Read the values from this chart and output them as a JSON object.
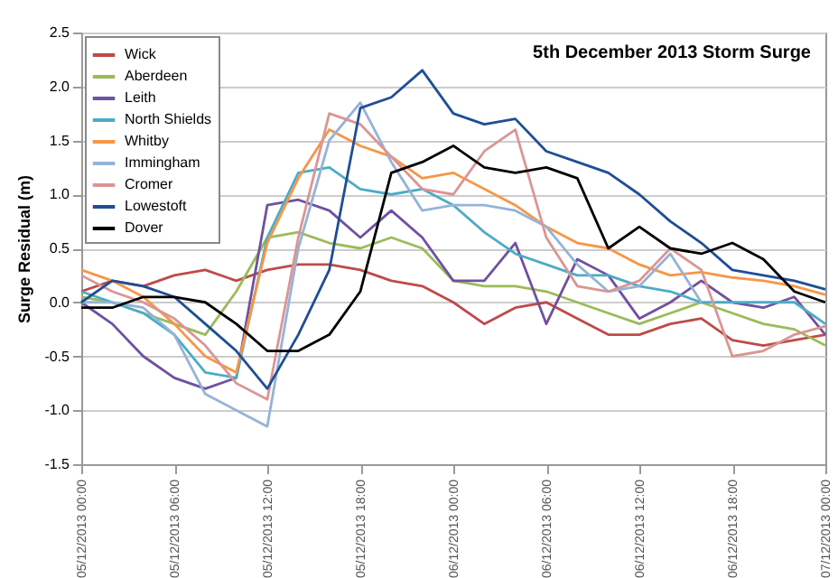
{
  "chart_data": {
    "type": "line",
    "title": "5th December 2013 Storm Surge",
    "ylabel": "Surge Residual (m)",
    "x": [
      "2013-12-05T00:00",
      "2013-12-05T02:00",
      "2013-12-05T04:00",
      "2013-12-05T06:00",
      "2013-12-05T08:00",
      "2013-12-05T10:00",
      "2013-12-05T12:00",
      "2013-12-05T14:00",
      "2013-12-05T16:00",
      "2013-12-05T18:00",
      "2013-12-05T20:00",
      "2013-12-05T22:00",
      "2013-12-06T00:00",
      "2013-12-06T02:00",
      "2013-12-06T04:00",
      "2013-12-06T06:00",
      "2013-12-06T08:00",
      "2013-12-06T10:00",
      "2013-12-06T12:00",
      "2013-12-06T14:00",
      "2013-12-06T16:00",
      "2013-12-06T18:00",
      "2013-12-06T20:00",
      "2013-12-06T22:00",
      "2013-12-07T00:00"
    ],
    "series": [
      {
        "name": "Wick",
        "color": "#be4b48",
        "values": [
          0.1,
          0.2,
          0.15,
          0.25,
          0.3,
          0.2,
          0.3,
          0.35,
          0.35,
          0.3,
          0.2,
          0.15,
          0.0,
          -0.2,
          -0.05,
          0.0,
          -0.15,
          -0.3,
          -0.3,
          -0.2,
          -0.15,
          -0.35,
          -0.4,
          -0.35,
          -0.3
        ]
      },
      {
        "name": "Aberdeen",
        "color": "#9bbb59",
        "values": [
          0.05,
          0.0,
          -0.1,
          -0.2,
          -0.3,
          0.1,
          0.6,
          0.65,
          0.55,
          0.5,
          0.6,
          0.5,
          0.2,
          0.15,
          0.15,
          0.1,
          0.0,
          -0.1,
          -0.2,
          -0.1,
          0.0,
          -0.1,
          -0.2,
          -0.25,
          -0.4
        ]
      },
      {
        "name": "Leith",
        "color": "#7050a0",
        "values": [
          0.0,
          -0.2,
          -0.5,
          -0.7,
          -0.8,
          -0.7,
          0.9,
          0.95,
          0.85,
          0.6,
          0.85,
          0.6,
          0.2,
          0.2,
          0.55,
          -0.2,
          0.4,
          0.25,
          -0.15,
          0.0,
          0.2,
          0.0,
          -0.05,
          0.05,
          -0.3
        ]
      },
      {
        "name": "North Shields",
        "color": "#4bacc6",
        "values": [
          0.1,
          0.0,
          -0.1,
          -0.3,
          -0.65,
          -0.7,
          0.6,
          1.2,
          1.25,
          1.05,
          1.0,
          1.05,
          0.9,
          0.65,
          0.45,
          0.35,
          0.25,
          0.25,
          0.15,
          0.1,
          0.0,
          0.0,
          0.0,
          0.0,
          -0.2
        ]
      },
      {
        "name": "Whitby",
        "color": "#f79646",
        "values": [
          0.3,
          0.2,
          0.05,
          -0.2,
          -0.5,
          -0.65,
          0.55,
          1.15,
          1.6,
          1.45,
          1.35,
          1.15,
          1.2,
          1.05,
          0.9,
          0.7,
          0.55,
          0.5,
          0.35,
          0.25,
          0.28,
          0.23,
          0.2,
          0.15,
          0.07
        ]
      },
      {
        "name": "Immingham",
        "color": "#95b3d7",
        "values": [
          0.0,
          0.0,
          -0.05,
          -0.3,
          -0.85,
          -1.0,
          -1.15,
          0.5,
          1.5,
          1.85,
          1.3,
          0.85,
          0.9,
          0.9,
          0.85,
          0.7,
          0.35,
          0.1,
          0.15,
          0.45,
          0.0,
          null,
          null,
          null,
          null
        ]
      },
      {
        "name": "Cromer",
        "color": "#d99694",
        "values": [
          0.25,
          0.1,
          0.0,
          -0.15,
          -0.4,
          -0.75,
          -0.9,
          0.6,
          1.75,
          1.65,
          1.35,
          1.05,
          1.0,
          1.4,
          1.6,
          0.6,
          0.15,
          0.1,
          0.2,
          0.5,
          0.3,
          -0.5,
          -0.45,
          -0.3,
          -0.22
        ]
      },
      {
        "name": "Lowestoft",
        "color": "#1f4e96",
        "values": [
          0.0,
          0.2,
          0.15,
          0.05,
          -0.2,
          -0.45,
          -0.8,
          -0.3,
          0.3,
          1.8,
          1.9,
          2.15,
          1.75,
          1.65,
          1.7,
          1.4,
          1.3,
          1.2,
          1.0,
          0.75,
          0.55,
          0.3,
          0.25,
          0.2,
          0.12
        ]
      },
      {
        "name": "Dover",
        "color": "#000000",
        "values": [
          -0.05,
          -0.05,
          0.05,
          0.05,
          0.0,
          -0.2,
          -0.45,
          -0.45,
          -0.3,
          0.1,
          1.2,
          1.3,
          1.45,
          1.25,
          1.2,
          1.25,
          1.15,
          0.5,
          0.7,
          0.5,
          0.45,
          0.55,
          0.4,
          0.1,
          0.0
        ]
      }
    ],
    "xlim": [
      "2013-12-05T00:00",
      "2013-12-07T00:00"
    ],
    "xticks": [
      {
        "value": "2013-12-05T00:00",
        "label": "05/12/2013 00:00"
      },
      {
        "value": "2013-12-05T06:00",
        "label": "05/12/2013 06:00"
      },
      {
        "value": "2013-12-05T12:00",
        "label": "05/12/2013 12:00"
      },
      {
        "value": "2013-12-05T18:00",
        "label": "05/12/2013 18:00"
      },
      {
        "value": "2013-12-06T00:00",
        "label": "06/12/2013 00:00"
      },
      {
        "value": "2013-12-06T06:00",
        "label": "06/12/2013 06:00"
      },
      {
        "value": "2013-12-06T12:00",
        "label": "06/12/2013 12:00"
      },
      {
        "value": "2013-12-06T18:00",
        "label": "06/12/2013 18:00"
      },
      {
        "value": "2013-12-07T00:00",
        "label": "07/12/2013 00:00"
      }
    ],
    "ylim": [
      -1.5,
      2.5
    ],
    "yticks": [
      {
        "value": -1.5,
        "label": "-1.5"
      },
      {
        "value": -1.0,
        "label": "-1.0"
      },
      {
        "value": -0.5,
        "label": "-0.5"
      },
      {
        "value": 0,
        "label": "0.0"
      },
      {
        "value": 0.5,
        "label": "0.5"
      },
      {
        "value": 1.0,
        "label": "1.0"
      },
      {
        "value": 1.5,
        "label": "1.5"
      },
      {
        "value": 2.0,
        "label": "2.0"
      },
      {
        "value": 2.5,
        "label": "2.5"
      }
    ],
    "grid": "y",
    "legend": "top left",
    "line_style": "solid",
    "marker": "none"
  }
}
